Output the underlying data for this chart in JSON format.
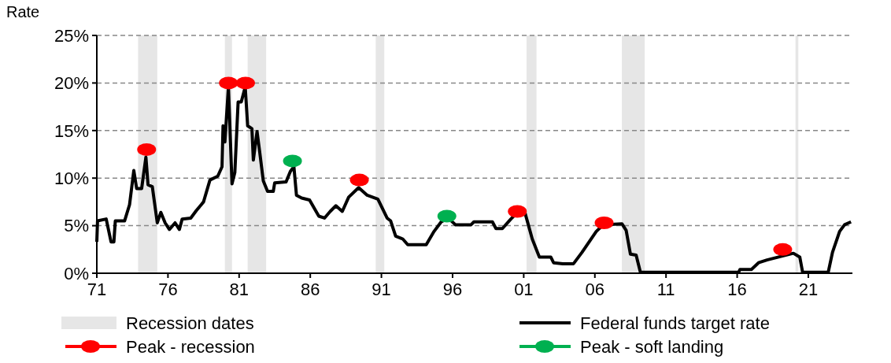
{
  "chart_data": {
    "type": "line",
    "ylabel": "Rate",
    "xlim": [
      1971,
      2024.1
    ],
    "ylim": [
      0,
      25
    ],
    "xticks": [
      {
        "value": 1971,
        "label": "71"
      },
      {
        "value": 1976,
        "label": "76"
      },
      {
        "value": 1981,
        "label": "81"
      },
      {
        "value": 1986,
        "label": "86"
      },
      {
        "value": 1991,
        "label": "91"
      },
      {
        "value": 1996,
        "label": "96"
      },
      {
        "value": 2001,
        "label": "01"
      },
      {
        "value": 2006,
        "label": "06"
      },
      {
        "value": 2011,
        "label": "11"
      },
      {
        "value": 2016,
        "label": "16"
      },
      {
        "value": 2021,
        "label": "21"
      }
    ],
    "yticks": [
      {
        "value": 0,
        "label": "0%"
      },
      {
        "value": 5,
        "label": "5%"
      },
      {
        "value": 10,
        "label": "10%"
      },
      {
        "value": 15,
        "label": "15%"
      },
      {
        "value": 20,
        "label": "20%"
      },
      {
        "value": 25,
        "label": "25%"
      }
    ],
    "grid": "y",
    "legend": "bottom",
    "bands": [
      {
        "axis": "x",
        "from": 1973.9,
        "to": 1975.25,
        "label": "Recession dates",
        "color": "#e6e6e6"
      },
      {
        "axis": "x",
        "from": 1980.0,
        "to": 1980.5,
        "color": "#e6e6e6"
      },
      {
        "axis": "x",
        "from": 1981.6,
        "to": 1982.9,
        "color": "#e6e6e6"
      },
      {
        "axis": "x",
        "from": 1990.6,
        "to": 1991.2,
        "color": "#e6e6e6"
      },
      {
        "axis": "x",
        "from": 2001.2,
        "to": 2001.9,
        "color": "#e6e6e6"
      },
      {
        "axis": "x",
        "from": 2007.9,
        "to": 2009.5,
        "color": "#e6e6e6"
      },
      {
        "axis": "x",
        "from": 2020.1,
        "to": 2020.3,
        "color": "#e6e6e6"
      }
    ],
    "series": [
      {
        "name": "Federal funds target rate",
        "color": "#000000",
        "marker": "none",
        "x": [
          1971.0,
          1971.05,
          1971.66,
          1972.0,
          1972.2,
          1972.3,
          1972.95,
          1973.3,
          1973.6,
          1973.8,
          1974.15,
          1974.45,
          1974.6,
          1974.9,
          1975.25,
          1975.5,
          1975.8,
          1976.1,
          1976.5,
          1976.8,
          1977.0,
          1977.6,
          1978.0,
          1978.5,
          1978.95,
          1979.5,
          1979.8,
          1979.87,
          1980.0,
          1980.25,
          1980.5,
          1980.7,
          1980.93,
          1981.15,
          1981.43,
          1981.6,
          1981.9,
          1982.0,
          1982.26,
          1982.45,
          1982.7,
          1983.0,
          1983.4,
          1983.5,
          1984.3,
          1984.6,
          1984.85,
          1985.03,
          1985.4,
          1985.95,
          1986.6,
          1987.0,
          1987.4,
          1987.8,
          1988.25,
          1988.7,
          1989.4,
          1990.0,
          1990.75,
          1991.4,
          1991.65,
          1992.0,
          1992.5,
          1992.85,
          1994.15,
          1994.7,
          1995.2,
          1995.7,
          1996.2,
          1997.3,
          1997.5,
          1998.8,
          1999.05,
          1999.5,
          2000.1,
          2000.5,
          2001.1,
          2001.6,
          2002.1,
          2002.9,
          2003.1,
          2003.75,
          2004.5,
          2005.1,
          2006.1,
          2006.6,
          2007.9,
          2008.2,
          2008.5,
          2008.9,
          2009.2,
          2016.1,
          2016.2,
          2017.0,
          2017.5,
          2018.1,
          2019.95,
          2020.4,
          2020.6,
          2022.4,
          2022.7,
          2023.2,
          2023.55,
          2024.0
        ],
        "values": [
          3.3,
          5.5,
          5.7,
          3.3,
          3.3,
          5.5,
          5.5,
          7.2,
          10.8,
          8.9,
          8.9,
          12.2,
          9.3,
          9.1,
          5.3,
          6.4,
          5.3,
          4.6,
          5.3,
          4.6,
          5.7,
          5.8,
          6.6,
          7.5,
          9.8,
          10.2,
          11.2,
          15.5,
          13.8,
          19.6,
          9.4,
          10.6,
          18.0,
          18.0,
          19.6,
          15.5,
          15.2,
          11.9,
          14.9,
          12.7,
          9.7,
          8.6,
          8.6,
          9.5,
          9.6,
          10.7,
          11.2,
          8.2,
          7.9,
          7.7,
          6.0,
          5.8,
          6.5,
          7.1,
          6.5,
          8.0,
          9.0,
          8.2,
          7.8,
          5.8,
          5.5,
          3.9,
          3.6,
          3.0,
          3.0,
          4.4,
          5.4,
          5.8,
          5.1,
          5.1,
          5.4,
          5.4,
          4.7,
          4.7,
          5.7,
          6.3,
          6.3,
          3.6,
          1.7,
          1.7,
          1.1,
          1.0,
          1.0,
          2.2,
          4.4,
          5.1,
          5.2,
          4.5,
          2.0,
          1.9,
          0.1,
          0.1,
          0.4,
          0.4,
          1.1,
          1.4,
          2.1,
          1.7,
          0.1,
          0.1,
          2.2,
          4.4,
          5.1,
          5.4
        ]
      },
      {
        "name": "Peak - recession",
        "type": "scatter",
        "color": "#ff0000",
        "marker": "circle",
        "x": [
          1974.5,
          1980.25,
          1981.45,
          1989.45,
          2000.55,
          2006.65,
          2019.2
        ],
        "values": [
          13,
          20,
          20,
          9.8,
          6.5,
          5.3,
          2.5
        ]
      },
      {
        "name": "Peak - soft landing",
        "type": "scatter",
        "color": "#00b050",
        "marker": "circle",
        "x": [
          1984.75,
          1995.6
        ],
        "values": [
          11.8,
          6
        ]
      }
    ]
  }
}
